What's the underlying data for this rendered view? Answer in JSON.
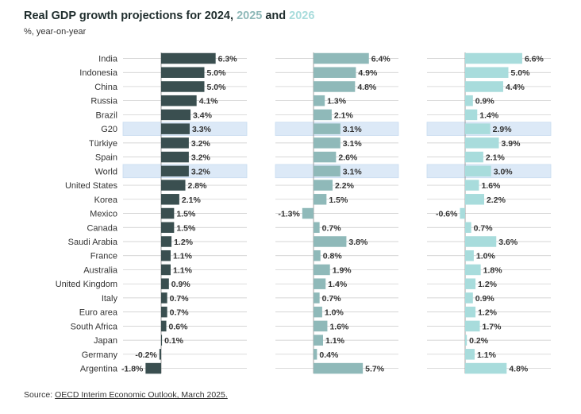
{
  "header": {
    "title_prefix": "Real GDP growth projections for ",
    "year_2024": "2024",
    "sep1": ", ",
    "year_2025": "2025",
    "sep2": " and ",
    "year_2026": "2026",
    "subtitle": "%, year-on-year"
  },
  "footer": {
    "source_label": "Source: ",
    "source_link": "OECD Interim Economic Outlook, March 2025."
  },
  "colors": {
    "y2024": "#3a4f50",
    "y2025": "#8fb9b9",
    "y2026": "#a8dcdc",
    "highlight": "#dce9f7",
    "gridline": "#c8c8c8"
  },
  "chart_data": {
    "type": "bar",
    "orientation": "horizontal",
    "title": "Real GDP growth projections for 2024, 2025 and 2026",
    "subtitle": "%, year-on-year",
    "highlighted_categories": [
      "G20",
      "World"
    ],
    "categories": [
      "India",
      "Indonesia",
      "China",
      "Russia",
      "Brazil",
      "G20",
      "Türkiye",
      "Spain",
      "World",
      "United States",
      "Korea",
      "Mexico",
      "Canada",
      "Saudi Arabia",
      "France",
      "Australia",
      "United Kingdom",
      "Italy",
      "Euro area",
      "South Africa",
      "Japan",
      "Germany",
      "Argentina"
    ],
    "series": [
      {
        "name": "2024",
        "color": "#3a4f50",
        "values": [
          6.3,
          5.0,
          5.0,
          4.1,
          3.4,
          3.3,
          3.2,
          3.2,
          3.2,
          2.8,
          2.1,
          1.5,
          1.5,
          1.2,
          1.1,
          1.1,
          0.9,
          0.7,
          0.7,
          0.6,
          0.1,
          -0.2,
          -1.8
        ]
      },
      {
        "name": "2025",
        "color": "#8fb9b9",
        "values": [
          6.4,
          4.9,
          4.8,
          1.3,
          2.1,
          3.1,
          3.1,
          2.6,
          3.1,
          2.2,
          1.5,
          -1.3,
          0.7,
          3.8,
          0.8,
          1.9,
          1.4,
          0.7,
          1.0,
          1.6,
          1.1,
          0.4,
          5.7
        ]
      },
      {
        "name": "2026",
        "color": "#a8dcdc",
        "values": [
          6.6,
          5.0,
          4.4,
          0.9,
          1.4,
          2.9,
          3.9,
          2.1,
          3.0,
          1.6,
          2.2,
          -0.6,
          0.7,
          3.6,
          1.0,
          1.8,
          1.2,
          0.9,
          1.2,
          1.7,
          0.2,
          1.1,
          4.8
        ]
      }
    ],
    "value_format": "one decimal with % suffix",
    "legend": "none (years colored in title)"
  }
}
